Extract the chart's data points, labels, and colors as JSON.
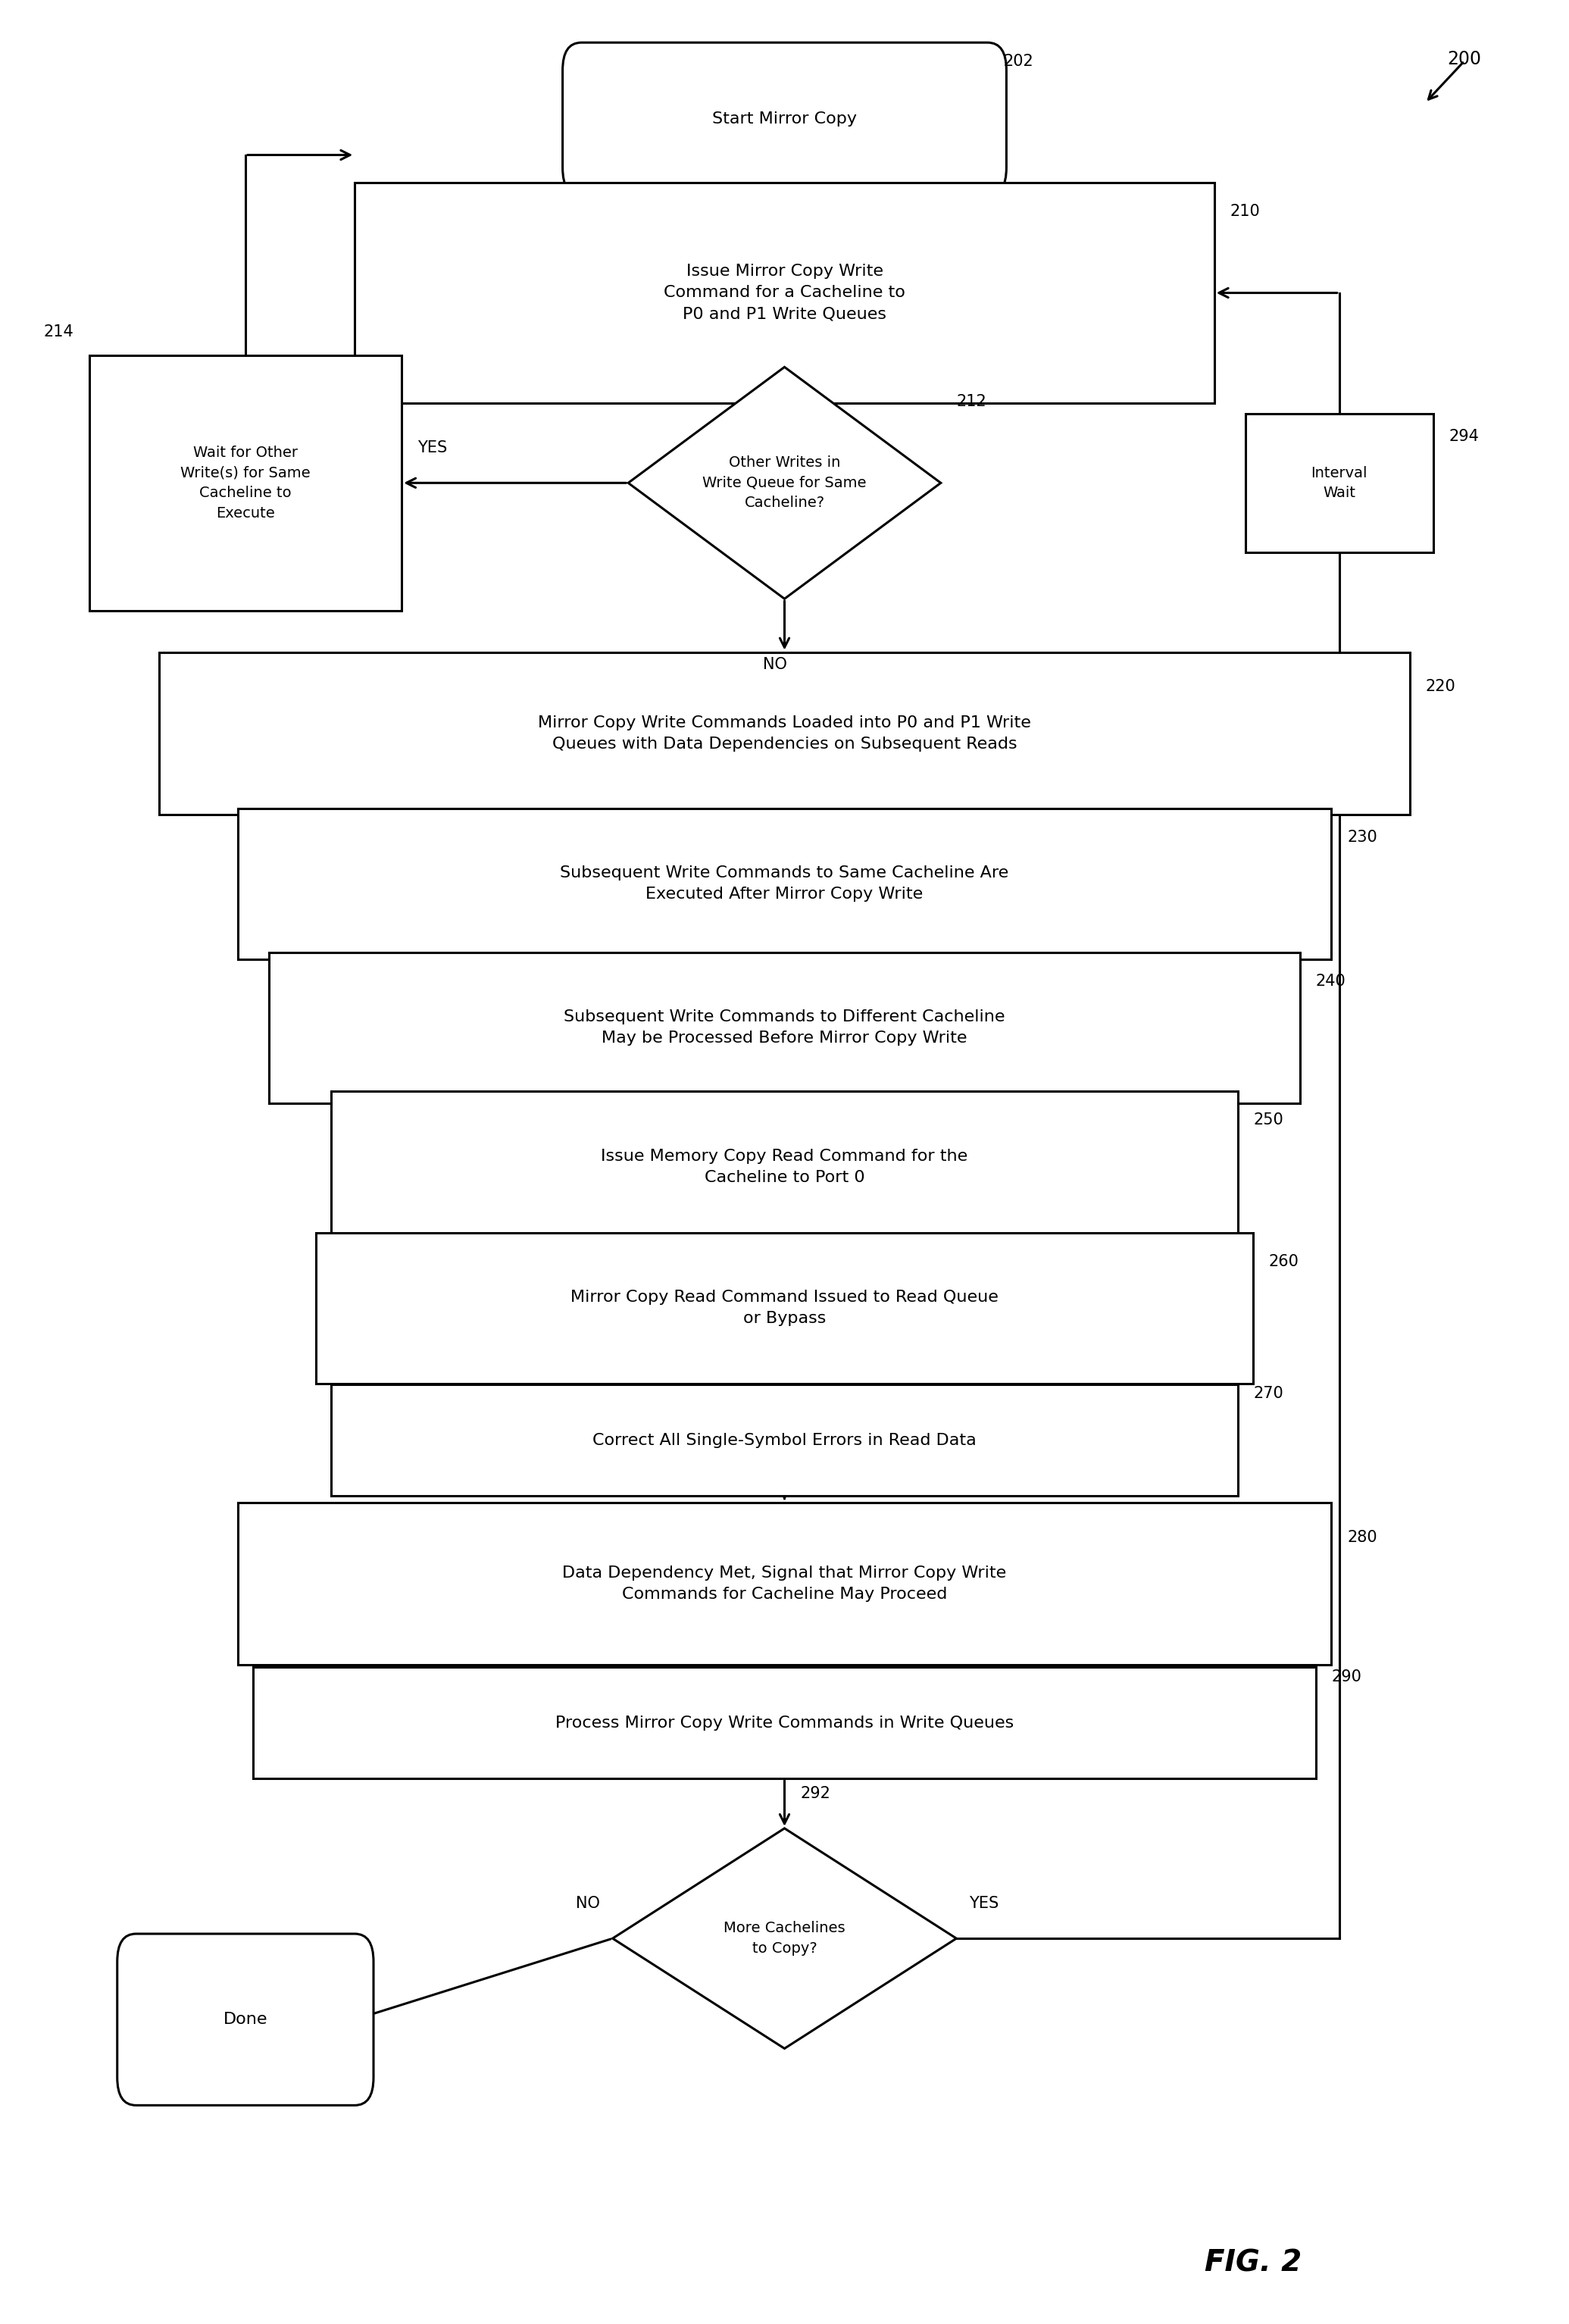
{
  "fig_width": 20.71,
  "fig_height": 30.67,
  "bg_color": "#ffffff",
  "box_edge_color": "#000000",
  "text_color": "#000000",
  "arrow_color": "#000000",
  "font_size": 16,
  "label_font_size": 15,
  "fig2_fontsize": 28,
  "lw": 2.2,
  "nodes": {
    "start": {
      "label": "202",
      "text": "Start Mirror Copy"
    },
    "box210": {
      "label": "210",
      "text": "Issue Mirror Copy Write\nCommand for a Cacheline to\nP0 and P1 Write Queues"
    },
    "dia212": {
      "label": "212",
      "text": "Other Writes in\nWrite Queue for Same\nCacheline?"
    },
    "box214": {
      "label": "214",
      "text": "Wait for Other\nWrite(s) for Same\nCacheline to\nExecute"
    },
    "box294": {
      "label": "294",
      "text": "Interval\nWait"
    },
    "box220": {
      "label": "220",
      "text": "Mirror Copy Write Commands Loaded into P0 and P1 Write\nQueues with Data Dependencies on Subsequent Reads"
    },
    "box230": {
      "label": "230",
      "text": "Subsequent Write Commands to Same Cacheline Are\nExecuted After Mirror Copy Write"
    },
    "box240": {
      "label": "240",
      "text": "Subsequent Write Commands to Different Cacheline\nMay be Processed Before Mirror Copy Write"
    },
    "box250": {
      "label": "250",
      "text": "Issue Memory Copy Read Command for the\nCacheline to Port 0"
    },
    "box260": {
      "label": "260",
      "text": "Mirror Copy Read Command Issued to Read Queue\nor Bypass"
    },
    "box270": {
      "label": "270",
      "text": "Correct All Single-Symbol Errors in Read Data"
    },
    "box280": {
      "label": "280",
      "text": "Data Dependency Met, Signal that Mirror Copy Write\nCommands for Cacheline May Proceed"
    },
    "box290": {
      "label": "290",
      "text": "Process Mirror Copy Write Commands in Write Queues"
    },
    "dia292": {
      "label": "292",
      "text": "More Cachelines\nto Copy?"
    },
    "done": {
      "label": "",
      "text": "Done"
    }
  }
}
